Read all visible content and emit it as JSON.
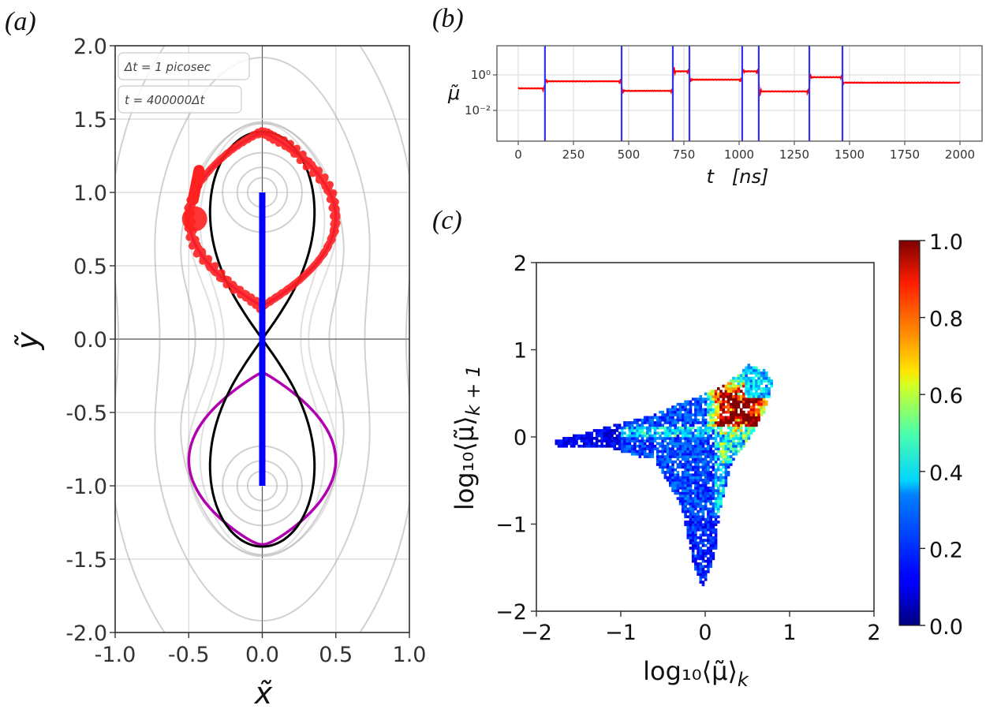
{
  "chart_data": [
    {
      "panel": "(a)",
      "type": "line",
      "xlabel": "x̃",
      "ylabel": "ỹ",
      "xlim": [
        -1.0,
        1.0
      ],
      "ylim": [
        -2.0,
        2.0
      ],
      "xticks": [
        "-1.0",
        "-0.5",
        "0.0",
        "0.5",
        "1.0"
      ],
      "yticks": [
        "2.0",
        "1.5",
        "1.0",
        "0.5",
        "0.0",
        "-0.5",
        "-1.0",
        "-1.5",
        "-2.0"
      ],
      "grid": true,
      "annotations": [
        "Δt = 1 picosec",
        "t = 400000Δt"
      ],
      "series": [
        {
          "name": "separatrix",
          "color": "#000000",
          "description": "figure-eight lemniscate through origin, extent x ±0.5, y ±1.41"
        },
        {
          "name": "orbit",
          "color": "#b000b0",
          "description": "closed orbits around foci, y from ±0.21 to ±1.40"
        },
        {
          "name": "trajectory",
          "color": "#ff2020",
          "description": "noisy trajectory on upper lobe"
        },
        {
          "name": "segment",
          "color": "#0000ff",
          "x": [
            0,
            0
          ],
          "y": [
            -1.0,
            1.0
          ]
        },
        {
          "name": "contours",
          "color": "#b0b0b0",
          "description": "potential contour lines around foci (0, ±1)"
        }
      ],
      "foci": [
        [
          0,
          1.0
        ],
        [
          0,
          -1.0
        ]
      ]
    },
    {
      "panel": "(b)",
      "type": "line",
      "xlabel": "t   [ns]",
      "ylabel": "μ̃",
      "yscale": "log",
      "xlim": [
        -100,
        2100
      ],
      "ylim_log10": [
        -3.73,
        1.64
      ],
      "xticks": [
        "0",
        "250",
        "500",
        "750",
        "1000",
        "1250",
        "1500",
        "1750",
        "2000"
      ],
      "yticks": [
        "10⁰",
        "10⁻²"
      ],
      "grid": true,
      "series": [
        {
          "name": "mu",
          "color": "#ff0000",
          "segments_log10": [
            {
              "t": [
                0,
                121
              ],
              "log10_mu": -0.76
            },
            {
              "t": [
                121,
                468
              ],
              "log10_mu": -0.36
            },
            {
              "t": [
                468,
                700
              ],
              "log10_mu": -0.9
            },
            {
              "t": [
                700,
                775
              ],
              "log10_mu": 0.2
            },
            {
              "t": [
                775,
                1014
              ],
              "log10_mu": -0.27
            },
            {
              "t": [
                1014,
                1089
              ],
              "log10_mu": 0.2
            },
            {
              "t": [
                1089,
                1318
              ],
              "log10_mu": -0.93
            },
            {
              "t": [
                1318,
                1468
              ],
              "log10_mu": -0.13
            },
            {
              "t": [
                1468,
                2000
              ],
              "log10_mu": -0.44
            }
          ]
        },
        {
          "name": "switch-events",
          "color": "#3030ff",
          "t": [
            121,
            468,
            700,
            775,
            1014,
            1089,
            1318,
            1468
          ]
        }
      ]
    },
    {
      "panel": "(c)",
      "type": "heatmap",
      "xlabel": "log₁₀⟨μ̃⟩",
      "xlabel_sub": "k",
      "ylabel": "log₁₀⟨μ̃⟩",
      "ylabel_sub": "k + 1",
      "xlim": [
        -2,
        2
      ],
      "ylim": [
        -2,
        2
      ],
      "xticks": [
        "−2",
        "−1",
        "0",
        "1",
        "2"
      ],
      "yticks": [
        "2",
        "1",
        "0",
        "−1",
        "−2"
      ],
      "colormap": "jet",
      "colorbar": {
        "range": [
          0.0,
          1.0
        ],
        "ticks": [
          "1.0",
          "0.8",
          "0.6",
          "0.4",
          "0.2",
          "0.0"
        ]
      },
      "region_outline": [
        [
          -1.8,
          -0.05
        ],
        [
          -1.0,
          0.15
        ],
        [
          -0.6,
          0.25
        ],
        [
          -0.3,
          0.38
        ],
        [
          -0.1,
          0.45
        ],
        [
          0.25,
          0.6
        ],
        [
          0.5,
          0.82
        ],
        [
          0.7,
          0.75
        ],
        [
          0.8,
          0.6
        ],
        [
          0.7,
          0.3
        ],
        [
          0.5,
          -0.05
        ],
        [
          0.3,
          -0.3
        ],
        [
          0.15,
          -0.9
        ],
        [
          0.1,
          -1.4
        ],
        [
          -0.05,
          -1.75
        ],
        [
          -0.15,
          -1.5
        ],
        [
          -0.3,
          -0.8
        ],
        [
          -0.6,
          -0.3
        ],
        [
          -1.1,
          -0.15
        ],
        [
          -1.8,
          -0.12
        ]
      ],
      "hotspot": {
        "center": [
          0.4,
          0.3
        ],
        "value": 1.0
      }
    }
  ],
  "labels": {
    "panel_a": "(a)",
    "panel_b": "(b)",
    "panel_c": "(c)",
    "annot_dt": "Δt = 1 picosec",
    "annot_t": "t = 400000Δt",
    "a_xlabel": "x̃",
    "a_ylabel": "ỹ",
    "b_xlabel": "t   [ns]",
    "b_ylabel": "μ̃",
    "b_ytick_0": "10⁰",
    "b_ytick_1": "10⁻²",
    "c_xlabel_main": "log₁₀⟨μ̃⟩",
    "c_xlabel_sub": "k",
    "c_ylabel_main": "log₁₀⟨μ̃⟩",
    "c_ylabel_sub": "k + 1"
  }
}
